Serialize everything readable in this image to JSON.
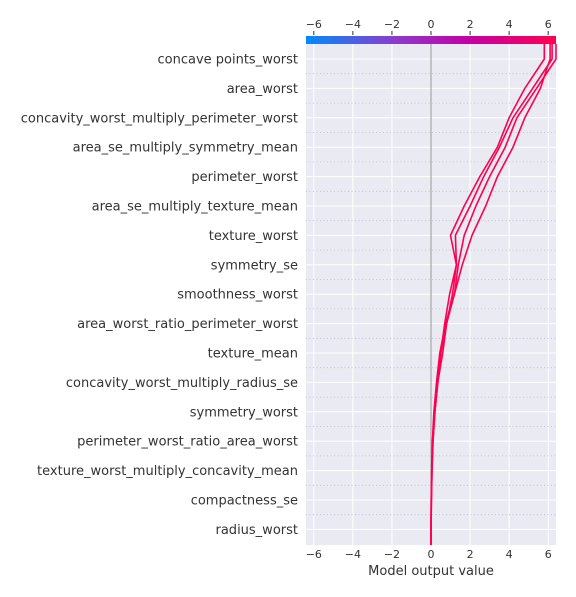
{
  "chart_data": {
    "type": "line",
    "chart_subtype": "shap-decision-plot",
    "xlabel": "Model output value",
    "xlim": [
      -6.4,
      6.4
    ],
    "x_ticks": [
      -6,
      -4,
      -2,
      0,
      2,
      4,
      6
    ],
    "x_tick_labels": [
      "−6",
      "−4",
      "−2",
      "0",
      "2",
      "4",
      "6"
    ],
    "base_value": 0,
    "colorbar": {
      "position": "top",
      "colors": [
        "#008bfb",
        "#8a3ccf",
        "#c400a5",
        "#ff0051"
      ]
    },
    "line_color": "#ff0051",
    "grid": true,
    "background": "#eaeaf2",
    "features": [
      "concave points_worst",
      "area_worst",
      "concavity_worst_multiply_perimeter_worst",
      "area_se_multiply_symmetry_mean",
      "perimeter_worst",
      "area_se_multiply_texture_mean",
      "texture_worst",
      "symmetry_se",
      "smoothness_worst",
      "area_worst_ratio_perimeter_worst",
      "texture_mean",
      "concavity_worst_multiply_radius_se",
      "symmetry_worst",
      "perimeter_worst_ratio_area_worst",
      "texture_worst_multiply_concavity_mean",
      "compactness_se",
      "radius_worst"
    ],
    "series": [
      {
        "values": [
          0.0,
          0.02,
          0.05,
          0.1,
          0.2,
          0.35,
          0.5,
          0.7,
          0.95,
          1.3,
          1.25,
          2.0,
          2.7,
          3.5,
          4.2,
          5.2,
          6.2
        ]
      },
      {
        "values": [
          0.0,
          0.02,
          0.05,
          0.1,
          0.2,
          0.35,
          0.6,
          0.8,
          1.1,
          1.3,
          1.0,
          1.7,
          2.5,
          3.4,
          4.0,
          4.8,
          5.8
        ]
      },
      {
        "values": [
          0.0,
          0.01,
          0.04,
          0.08,
          0.18,
          0.3,
          0.5,
          0.8,
          1.2,
          1.4,
          1.7,
          2.3,
          3.0,
          3.8,
          4.4,
          5.4,
          6.4
        ]
      },
      {
        "values": [
          0.0,
          0.01,
          0.03,
          0.07,
          0.15,
          0.28,
          0.45,
          0.75,
          1.2,
          1.6,
          2.1,
          2.8,
          3.4,
          4.2,
          4.8,
          5.6,
          6.1
        ]
      }
    ]
  }
}
